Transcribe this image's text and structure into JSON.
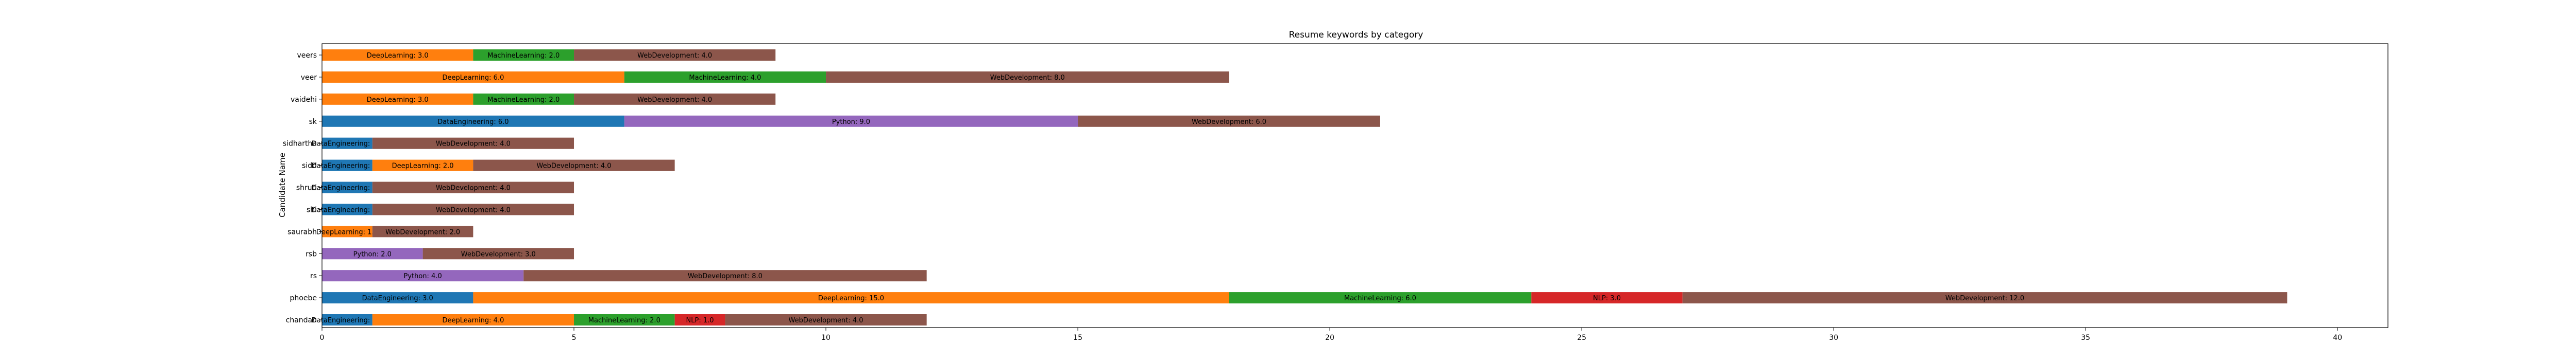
{
  "chart_data": {
    "type": "bar",
    "orientation": "horizontal",
    "stacked": true,
    "title": "Resume keywords by category",
    "ylabel": "Candidate Name",
    "xlabel": "",
    "xlim": [
      0,
      41
    ],
    "xticks": [
      0,
      5,
      10,
      15,
      20,
      25,
      30,
      35,
      40
    ],
    "grid": false,
    "legend": "none",
    "categories": [
      "chandan",
      "phoebe",
      "rs",
      "rsb",
      "saurabh",
      "shi",
      "shruti",
      "sidd",
      "sidhartha",
      "sk",
      "vaidehi",
      "veer",
      "veers"
    ],
    "colors": {
      "DataEngineering": "#1f77b4",
      "DeepLearning": "#ff7f0e",
      "MachineLearning": "#2ca02c",
      "NLP": "#d62728",
      "Python": "#9467bd",
      "WebDevelopment": "#8c564b"
    },
    "rows": [
      {
        "name": "chandan",
        "segments": [
          [
            "DataEngineering",
            1.0
          ],
          [
            "DeepLearning",
            4.0
          ],
          [
            "MachineLearning",
            2.0
          ],
          [
            "NLP",
            1.0
          ],
          [
            "WebDevelopment",
            4.0
          ]
        ]
      },
      {
        "name": "phoebe",
        "segments": [
          [
            "DataEngineering",
            3.0
          ],
          [
            "DeepLearning",
            15.0
          ],
          [
            "MachineLearning",
            6.0
          ],
          [
            "NLP",
            3.0
          ],
          [
            "WebDevelopment",
            12.0
          ]
        ]
      },
      {
        "name": "rs",
        "segments": [
          [
            "Python",
            4.0
          ],
          [
            "WebDevelopment",
            8.0
          ]
        ]
      },
      {
        "name": "rsb",
        "segments": [
          [
            "Python",
            2.0
          ],
          [
            "WebDevelopment",
            3.0
          ]
        ]
      },
      {
        "name": "saurabh",
        "segments": [
          [
            "DeepLearning",
            1.0
          ],
          [
            "WebDevelopment",
            2.0
          ]
        ]
      },
      {
        "name": "shi",
        "segments": [
          [
            "DataEngineering",
            1.0
          ],
          [
            "WebDevelopment",
            4.0
          ]
        ]
      },
      {
        "name": "shruti",
        "segments": [
          [
            "DataEngineering",
            1.0
          ],
          [
            "WebDevelopment",
            4.0
          ]
        ]
      },
      {
        "name": "sidd",
        "segments": [
          [
            "DataEngineering",
            1.0
          ],
          [
            "DeepLearning",
            2.0
          ],
          [
            "WebDevelopment",
            4.0
          ]
        ]
      },
      {
        "name": "sidhartha",
        "segments": [
          [
            "DataEngineering",
            1.0
          ],
          [
            "WebDevelopment",
            4.0
          ]
        ]
      },
      {
        "name": "sk",
        "segments": [
          [
            "DataEngineering",
            6.0
          ],
          [
            "Python",
            9.0
          ],
          [
            "WebDevelopment",
            6.0
          ]
        ]
      },
      {
        "name": "vaidehi",
        "segments": [
          [
            "DeepLearning",
            3.0
          ],
          [
            "MachineLearning",
            2.0
          ],
          [
            "WebDevelopment",
            4.0
          ]
        ]
      },
      {
        "name": "veer",
        "segments": [
          [
            "DeepLearning",
            6.0
          ],
          [
            "MachineLearning",
            4.0
          ],
          [
            "WebDevelopment",
            8.0
          ]
        ]
      },
      {
        "name": "veers",
        "segments": [
          [
            "DeepLearning",
            3.0
          ],
          [
            "MachineLearning",
            2.0
          ],
          [
            "WebDevelopment",
            4.0
          ]
        ]
      }
    ]
  }
}
